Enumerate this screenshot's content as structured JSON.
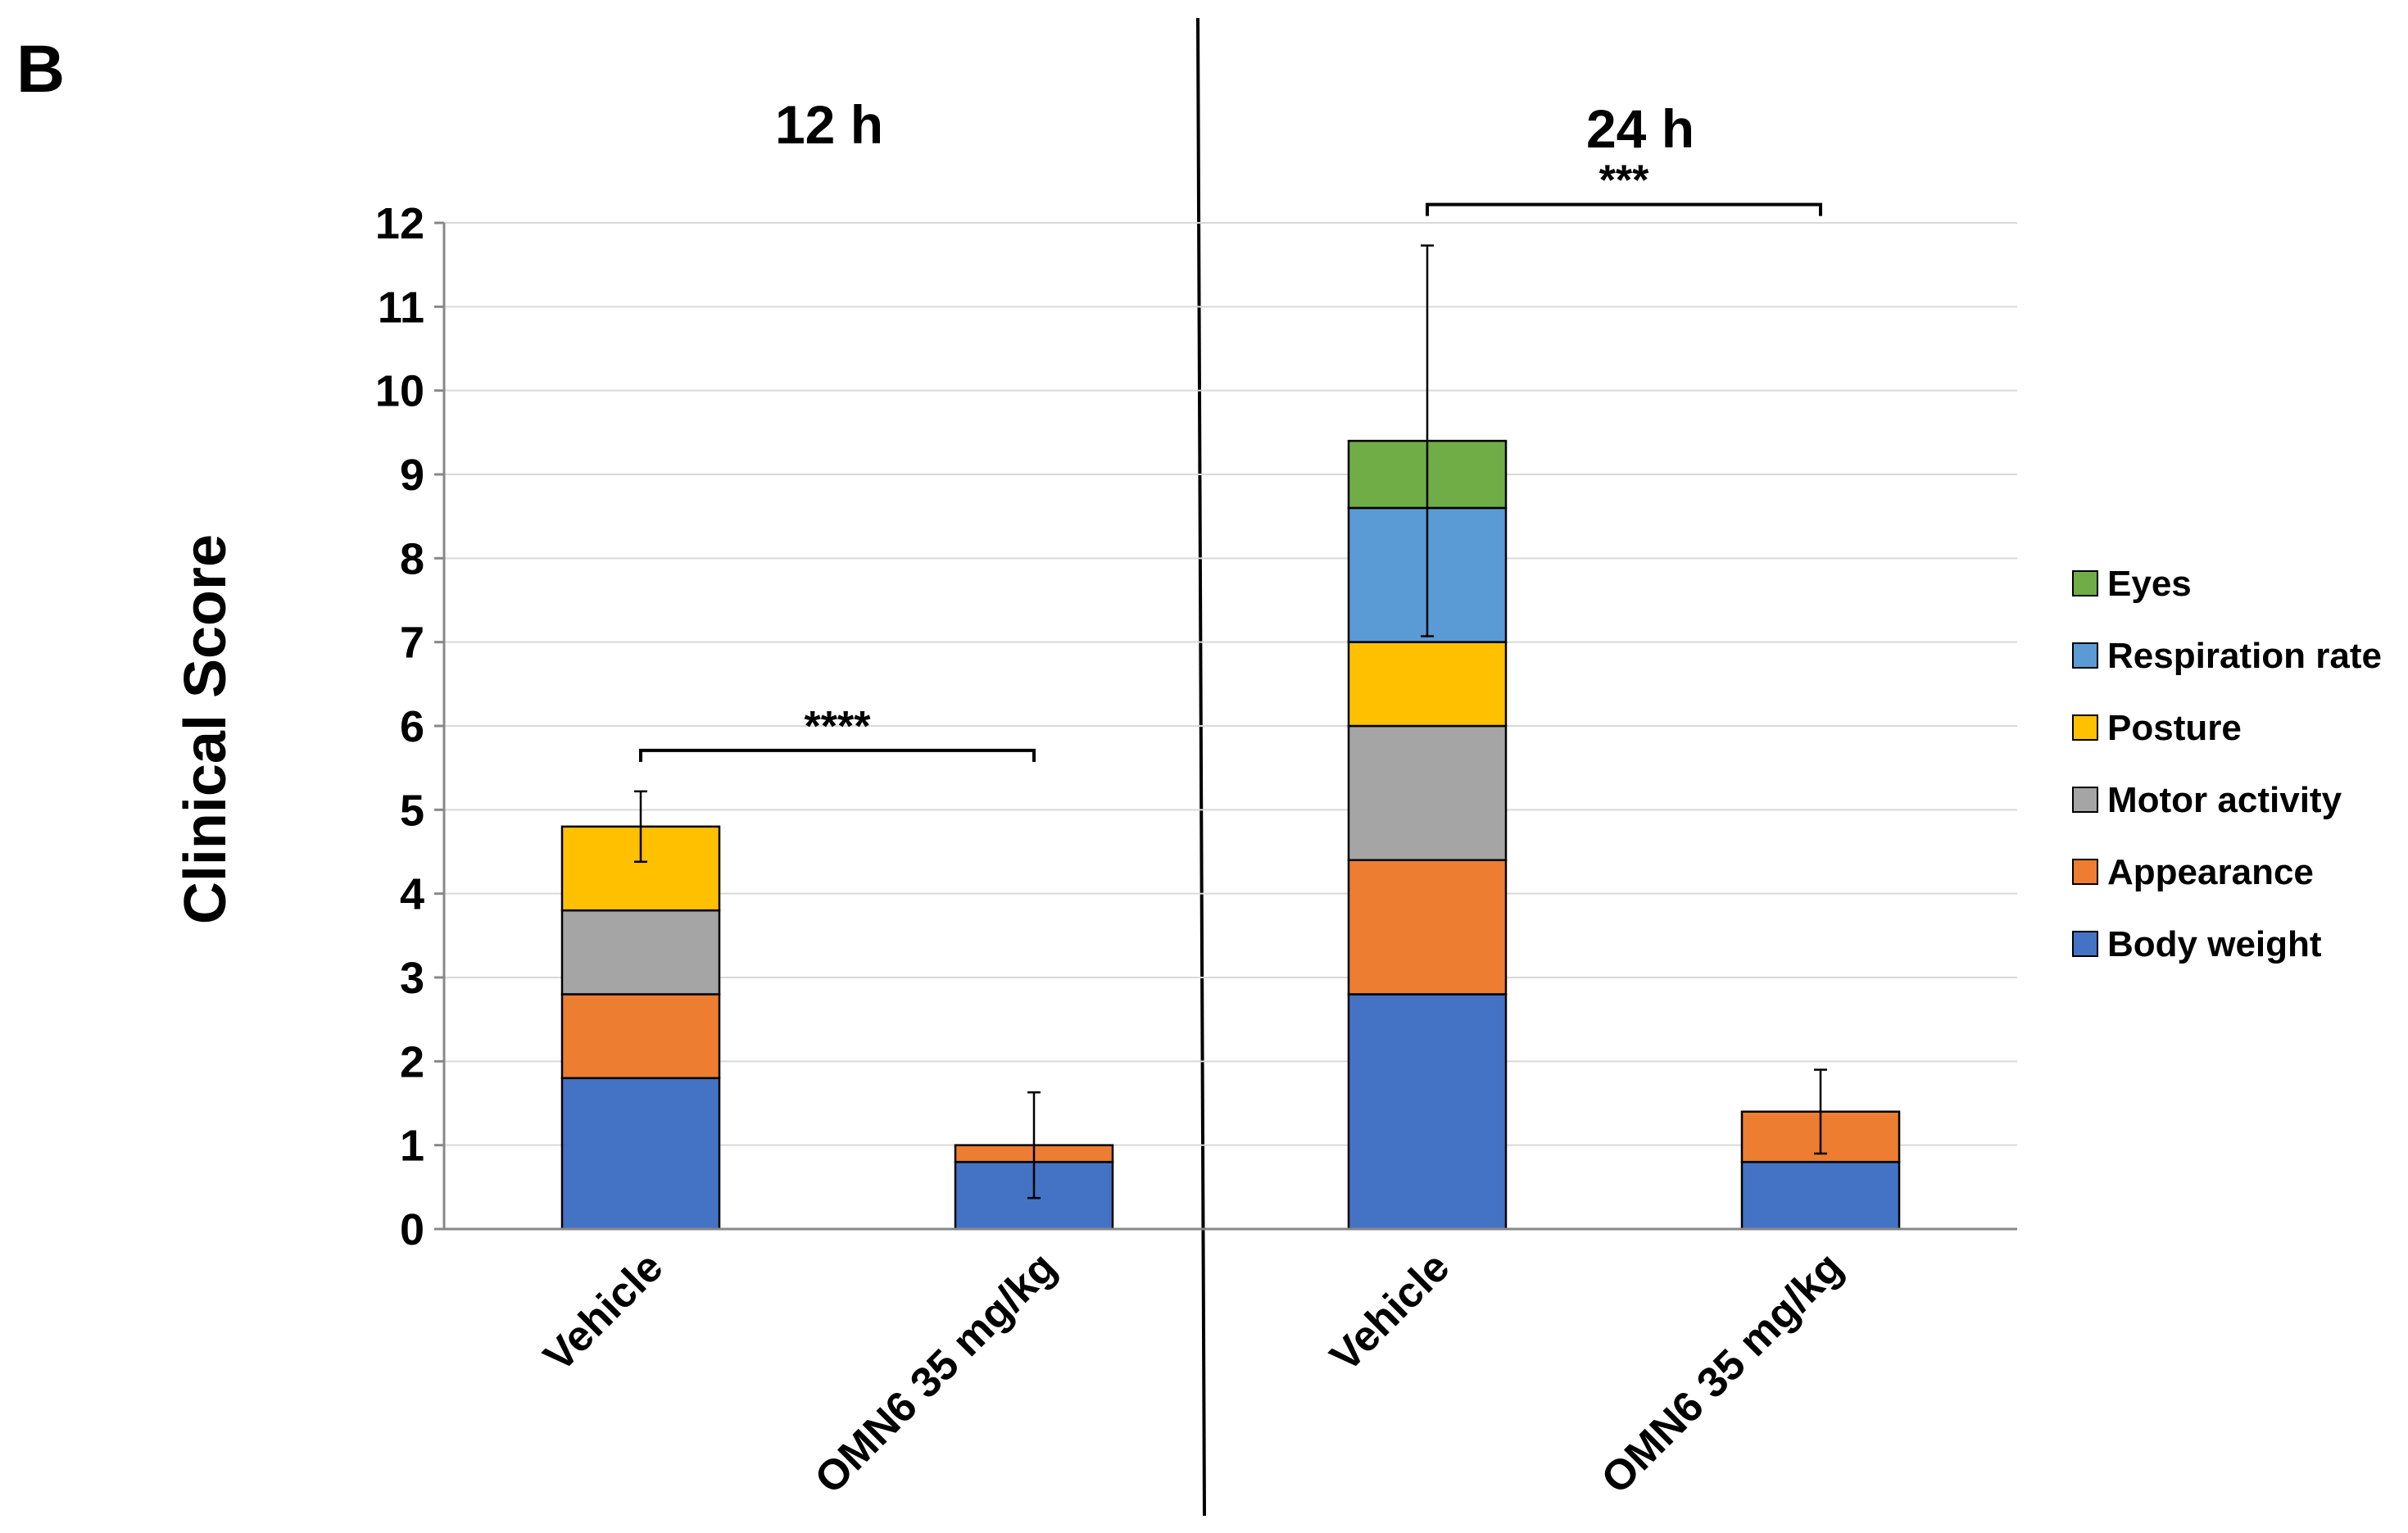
{
  "panel_label": "B",
  "chart_data": {
    "type": "bar",
    "stacked": true,
    "ylabel": "Clinical Score",
    "ylim": [
      0,
      12
    ],
    "yticks": [
      0,
      1,
      2,
      3,
      4,
      5,
      6,
      7,
      8,
      9,
      10,
      11,
      12
    ],
    "grid": true,
    "legend_position": "right",
    "series": [
      {
        "name": "Body weight",
        "color": "#4472C4"
      },
      {
        "name": "Appearance",
        "color": "#ED7D31"
      },
      {
        "name": "Motor activity",
        "color": "#A5A5A5"
      },
      {
        "name": "Posture",
        "color": "#FFC000"
      },
      {
        "name": "Respiration rate",
        "color": "#5B9BD5"
      },
      {
        "name": "Eyes",
        "color": "#70AD47"
      }
    ],
    "groups": [
      {
        "title": "12 h",
        "bars": [
          {
            "category": "Vehicle",
            "values": [
              1.8,
              1.0,
              1.0,
              1.0,
              0,
              0
            ],
            "error": 0.42
          },
          {
            "category": "OMN6 35 mg/kg",
            "values": [
              0.8,
              0.2,
              0,
              0,
              0,
              0
            ],
            "error": 0.63
          }
        ],
        "significance": "****"
      },
      {
        "title": "24 h",
        "bars": [
          {
            "category": "Vehicle",
            "values": [
              2.8,
              1.6,
              1.6,
              1.0,
              1.6,
              0.8
            ],
            "error": 2.33
          },
          {
            "category": "OMN6 35 mg/kg",
            "values": [
              0.8,
              0.6,
              0,
              0,
              0,
              0
            ],
            "error": 0.5
          }
        ],
        "significance": "***"
      }
    ]
  }
}
